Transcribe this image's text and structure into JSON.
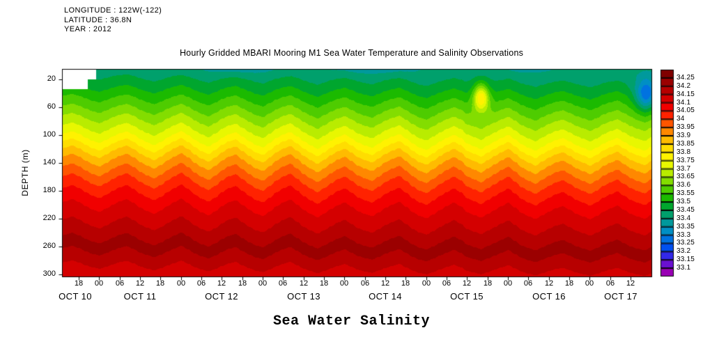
{
  "meta": {
    "longitude": "LONGITUDE : 122W(-122)",
    "latitude": "LATITUDE : 36.8N",
    "year": "YEAR : 2012"
  },
  "chart_data": {
    "type": "heatmap",
    "title": "Hourly Gridded MBARI Mooring M1 Sea Water Temperature and Salinity Observations",
    "footer_label": "Sea Water Salinity",
    "xlabel": "",
    "ylabel": "DEPTH (m)",
    "y_ticks": [
      20,
      60,
      100,
      140,
      180,
      220,
      260,
      300
    ],
    "y_range": [
      6,
      303
    ],
    "x_range_hours": [
      13.3,
      186.1
    ],
    "x_tick_hours": [
      18,
      24,
      30,
      36,
      42,
      48,
      54,
      60,
      66,
      72,
      78,
      84,
      90,
      96,
      102,
      108,
      114,
      120,
      126,
      132,
      138,
      144,
      150,
      156,
      162,
      168,
      174,
      180
    ],
    "x_tick_labels": [
      "18",
      "00",
      "06",
      "12",
      "18",
      "00",
      "06",
      "12",
      "18",
      "00",
      "06",
      "12",
      "18",
      "00",
      "06",
      "12",
      "18",
      "00",
      "06",
      "12",
      "18",
      "00",
      "06",
      "12",
      "18",
      "00",
      "06",
      "12"
    ],
    "date_labels": [
      {
        "label": "OCT 10",
        "hour": 17
      },
      {
        "label": "OCT 11",
        "hour": 36
      },
      {
        "label": "OCT 12",
        "hour": 60
      },
      {
        "label": "OCT 13",
        "hour": 84
      },
      {
        "label": "OCT 14",
        "hour": 108
      },
      {
        "label": "OCT 15",
        "hour": 132
      },
      {
        "label": "OCT 16",
        "hour": 156
      },
      {
        "label": "OCT 17",
        "hour": 177
      }
    ],
    "colorbar": {
      "levels": [
        33.1,
        33.15,
        33.2,
        33.25,
        33.3,
        33.35,
        33.4,
        33.45,
        33.5,
        33.55,
        33.6,
        33.65,
        33.7,
        33.75,
        33.8,
        33.85,
        33.9,
        33.95,
        34,
        34.05,
        34.1,
        34.15,
        34.2,
        34.25
      ],
      "levels_desc": [
        "34.25",
        "34.2",
        "34.15",
        "34.1",
        "34.05",
        "34",
        "33.95",
        "33.9",
        "33.85",
        "33.8",
        "33.75",
        "33.7",
        "33.65",
        "33.6",
        "33.55",
        "33.5",
        "33.45",
        "33.4",
        "33.35",
        "33.3",
        "33.25",
        "33.2",
        "33.15",
        "33.1"
      ],
      "colors_low_to_high": [
        "#9900b4",
        "#6a10d0",
        "#3328e8",
        "#0050f0",
        "#0072e0",
        "#008fc4",
        "#00999c",
        "#00a06c",
        "#00a62e",
        "#1bba00",
        "#4ecc00",
        "#83dd00",
        "#b9ec00",
        "#e8f700",
        "#fff200",
        "#ffdd00",
        "#ffbb00",
        "#ff8800",
        "#ff5500",
        "#ff2200",
        "#f10000",
        "#d40000",
        "#b70000",
        "#9b0000",
        "#800000"
      ]
    },
    "field": {
      "quantity": "sea water salinity",
      "profile_depths_m": [
        0,
        20,
        40,
        60,
        80,
        100,
        120,
        140,
        160,
        180,
        200,
        220,
        240,
        255,
        270,
        285,
        300
      ],
      "profile_salinity": [
        33.42,
        33.46,
        33.53,
        33.6,
        33.67,
        33.74,
        33.84,
        33.92,
        33.99,
        34.05,
        34.1,
        34.14,
        34.18,
        34.22,
        34.19,
        34.15,
        34.12
      ],
      "deepening_total_m": 12,
      "displacement_t0": 12,
      "displacement_dt": 2,
      "displacement_m": [
        2,
        6,
        9,
        5,
        -1,
        -6,
        -9,
        -4,
        2,
        7,
        10,
        5,
        -2,
        -7,
        -11,
        -6,
        1,
        7,
        12,
        6,
        -2,
        -8,
        -12,
        -6,
        2,
        8,
        11,
        4,
        -3,
        -9,
        -12,
        -5,
        3,
        9,
        13,
        6,
        -2,
        -8,
        -13,
        -7,
        0,
        6,
        10,
        4,
        -3,
        -7,
        -10,
        -4,
        3,
        8,
        12,
        5,
        -3,
        -9,
        -12,
        -6,
        1,
        7,
        12,
        7,
        -2,
        -6,
        -10,
        -4,
        2,
        8,
        13,
        6,
        -2,
        -7,
        -11,
        -5,
        1,
        6,
        9,
        4,
        -2,
        -6,
        -10,
        -5,
        2,
        7,
        11,
        5,
        -1,
        -5,
        -8,
        -2
      ],
      "missing_data_steps": [
        {
          "hour": 23,
          "depth_m": 20
        },
        {
          "hour": 20.5,
          "depth_m": 34
        }
      ],
      "anomalies": [
        {
          "t": 136,
          "d": 45,
          "rt": 1.6,
          "rd": 14,
          "delta": 0.3
        },
        {
          "t": 184.5,
          "d": 42,
          "rt": 2.2,
          "rd": 16,
          "delta": -0.22
        },
        {
          "t": 65,
          "d": 4,
          "rt": 8,
          "rd": 6,
          "delta": -0.05
        },
        {
          "t": 105,
          "d": 4,
          "rt": 10,
          "rd": 6,
          "delta": -0.05
        },
        {
          "t": 150,
          "d": 4,
          "rt": 6,
          "rd": 5,
          "delta": -0.04
        }
      ]
    }
  }
}
